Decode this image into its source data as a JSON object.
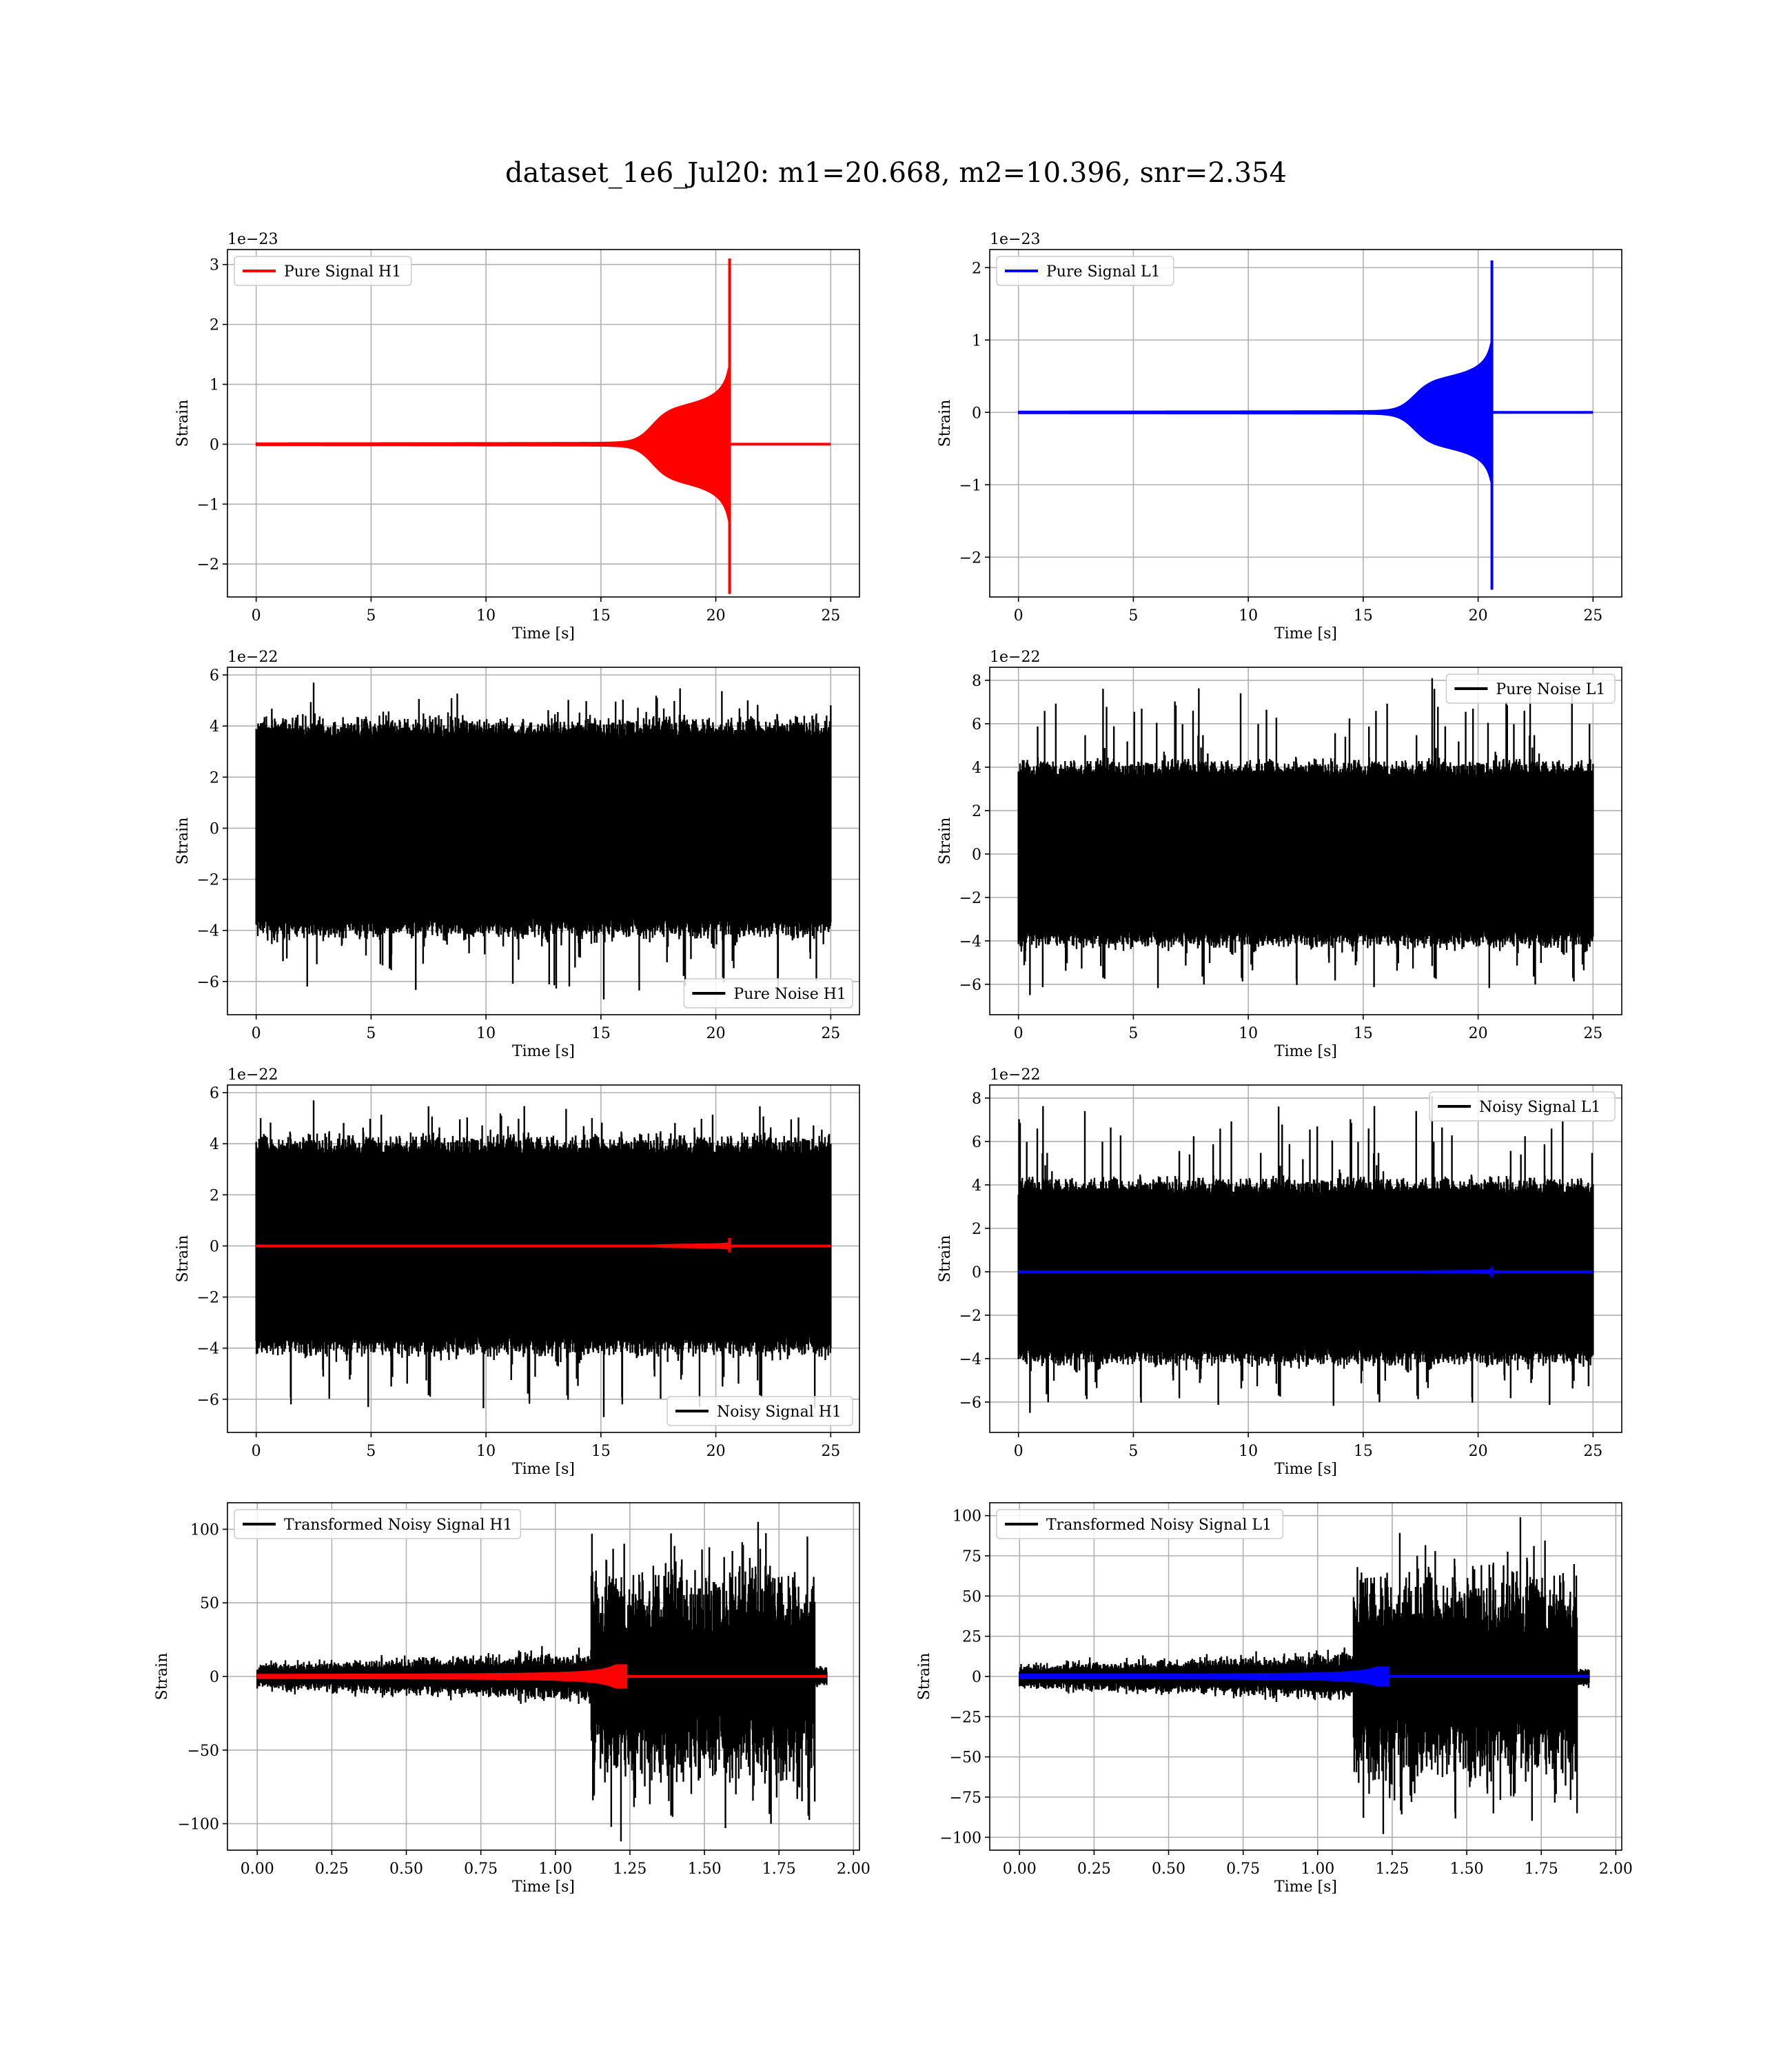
{
  "figure": {
    "title": "dataset_1e6_Jul20: m1=20.668, m2=10.396, snr=2.354"
  },
  "colors": {
    "h1_signal": "#ff0000",
    "l1_signal": "#0000ff",
    "noise": "#000000",
    "grid": "#b0b0b0"
  },
  "chart_data": [
    {
      "id": "pure-signal-h1",
      "type": "line",
      "title": "",
      "xlabel": "Time [s]",
      "ylabel": "Strain",
      "offset_label": "1e−23",
      "xlim": [
        -1.25,
        26.25
      ],
      "ylim": [
        -2.55,
        3.25
      ],
      "xticks": [
        0,
        5,
        10,
        15,
        20,
        25
      ],
      "xtick_labels": [
        "0",
        "5",
        "10",
        "15",
        "20",
        "25"
      ],
      "yticks": [
        -2,
        -1,
        0,
        1,
        2,
        3
      ],
      "ytick_labels": [
        "−2",
        "−1",
        "0",
        "1",
        "2",
        "3"
      ],
      "grid": true,
      "legend_loc": "upper left",
      "series": [
        {
          "name": "Pure Signal H1",
          "color": "#ff0000",
          "kind": "chirp",
          "t_start": 0,
          "t_merge": 20.6,
          "t_end": 25,
          "amp_plateau": 0.6,
          "amp_peak_pos": 3.1,
          "amp_peak_neg": 2.5
        }
      ]
    },
    {
      "id": "pure-signal-l1",
      "type": "line",
      "title": "",
      "xlabel": "Time [s]",
      "ylabel": "Strain",
      "offset_label": "1e−23",
      "xlim": [
        -1.25,
        26.25
      ],
      "ylim": [
        -2.55,
        2.25
      ],
      "xticks": [
        0,
        5,
        10,
        15,
        20,
        25
      ],
      "xtick_labels": [
        "0",
        "5",
        "10",
        "15",
        "20",
        "25"
      ],
      "yticks": [
        -2,
        -1,
        0,
        1,
        2
      ],
      "ytick_labels": [
        "−2",
        "−1",
        "0",
        "1",
        "2"
      ],
      "grid": true,
      "legend_loc": "upper left",
      "series": [
        {
          "name": "Pure Signal L1",
          "color": "#0000ff",
          "kind": "chirp",
          "t_start": 0,
          "t_merge": 20.6,
          "t_end": 25,
          "amp_plateau": 0.45,
          "amp_peak_pos": 2.1,
          "amp_peak_neg": 2.45
        }
      ]
    },
    {
      "id": "pure-noise-h1",
      "type": "line",
      "title": "",
      "xlabel": "Time [s]",
      "ylabel": "Strain",
      "offset_label": "1e−22",
      "xlim": [
        -1.25,
        26.25
      ],
      "ylim": [
        -7.3,
        6.3
      ],
      "xticks": [
        0,
        5,
        10,
        15,
        20,
        25
      ],
      "xtick_labels": [
        "0",
        "5",
        "10",
        "15",
        "20",
        "25"
      ],
      "yticks": [
        -6,
        -4,
        -2,
        0,
        2,
        4,
        6
      ],
      "ytick_labels": [
        "−6",
        "−4",
        "−2",
        "0",
        "2",
        "4",
        "6"
      ],
      "grid": true,
      "legend_loc": "lower right",
      "series": [
        {
          "name": "Pure Noise H1",
          "color": "#000000",
          "kind": "noise",
          "t_start": 0,
          "t_end": 25,
          "core": 3.5,
          "max": 5.7,
          "min": -6.7
        }
      ]
    },
    {
      "id": "pure-noise-l1",
      "type": "line",
      "title": "",
      "xlabel": "Time [s]",
      "ylabel": "Strain",
      "offset_label": "1e−22",
      "xlim": [
        -1.25,
        26.25
      ],
      "ylim": [
        -7.4,
        8.6
      ],
      "xticks": [
        0,
        5,
        10,
        15,
        20,
        25
      ],
      "xtick_labels": [
        "0",
        "5",
        "10",
        "15",
        "20",
        "25"
      ],
      "yticks": [
        -6,
        -4,
        -2,
        0,
        2,
        4,
        6,
        8
      ],
      "ytick_labels": [
        "−6",
        "−4",
        "−2",
        "0",
        "2",
        "4",
        "6",
        "8"
      ],
      "grid": true,
      "legend_loc": "upper right",
      "series": [
        {
          "name": "Pure Noise L1",
          "color": "#000000",
          "kind": "noise",
          "t_start": 0,
          "t_end": 25,
          "core": 3.5,
          "max": 8.1,
          "min": -6.5
        }
      ]
    },
    {
      "id": "noisy-signal-h1",
      "type": "line",
      "title": "",
      "xlabel": "Time [s]",
      "ylabel": "Strain",
      "offset_label": "1e−22",
      "xlim": [
        -1.25,
        26.25
      ],
      "ylim": [
        -7.3,
        6.3
      ],
      "xticks": [
        0,
        5,
        10,
        15,
        20,
        25
      ],
      "xtick_labels": [
        "0",
        "5",
        "10",
        "15",
        "20",
        "25"
      ],
      "yticks": [
        -6,
        -4,
        -2,
        0,
        2,
        4,
        6
      ],
      "ytick_labels": [
        "−6",
        "−4",
        "−2",
        "0",
        "2",
        "4",
        "6"
      ],
      "grid": true,
      "legend_loc": "lower right",
      "series": [
        {
          "name": "Noisy Signal H1",
          "color": "#000000",
          "kind": "noise",
          "t_start": 0,
          "t_end": 25,
          "core": 3.5,
          "max": 5.7,
          "min": -6.7
        },
        {
          "color": "#ff0000",
          "kind": "chirp",
          "t_start": 0,
          "t_merge": 20.6,
          "t_end": 25,
          "amp_plateau": 0.06,
          "amp_peak_pos": 0.31,
          "amp_peak_neg": 0.25
        }
      ]
    },
    {
      "id": "noisy-signal-l1",
      "type": "line",
      "title": "",
      "xlabel": "Time [s]",
      "ylabel": "Strain",
      "offset_label": "1e−22",
      "xlim": [
        -1.25,
        26.25
      ],
      "ylim": [
        -7.4,
        8.6
      ],
      "xticks": [
        0,
        5,
        10,
        15,
        20,
        25
      ],
      "xtick_labels": [
        "0",
        "5",
        "10",
        "15",
        "20",
        "25"
      ],
      "yticks": [
        -6,
        -4,
        -2,
        0,
        2,
        4,
        6,
        8
      ],
      "ytick_labels": [
        "−6",
        "−4",
        "−2",
        "0",
        "2",
        "4",
        "6",
        "8"
      ],
      "grid": true,
      "legend_loc": "upper right",
      "series": [
        {
          "name": "Noisy Signal L1",
          "color": "#000000",
          "kind": "noise",
          "t_start": 0,
          "t_end": 25,
          "core": 3.5,
          "max": 8.1,
          "min": -6.5
        },
        {
          "color": "#0000ff",
          "kind": "chirp",
          "t_start": 0,
          "t_merge": 20.6,
          "t_end": 25,
          "amp_plateau": 0.045,
          "amp_peak_pos": 0.21,
          "amp_peak_neg": 0.245
        }
      ]
    },
    {
      "id": "transformed-noisy-signal-h1",
      "type": "line",
      "title": "",
      "xlabel": "Time [s]",
      "ylabel": "Strain",
      "offset_label": "",
      "xlim": [
        -0.1,
        2.02
      ],
      "ylim": [
        -118,
        118
      ],
      "xticks": [
        0.0,
        0.25,
        0.5,
        0.75,
        1.0,
        1.25,
        1.5,
        1.75,
        2.0
      ],
      "xtick_labels": [
        "0.00",
        "0.25",
        "0.50",
        "0.75",
        "1.00",
        "1.25",
        "1.50",
        "1.75",
        "2.00"
      ],
      "yticks": [
        -100,
        -50,
        0,
        50,
        100
      ],
      "ytick_labels": [
        "−100",
        "−50",
        "0",
        "50",
        "100"
      ],
      "grid": true,
      "legend_loc": "upper left",
      "series": [
        {
          "name": "Transformed Noisy Signal H1",
          "color": "#000000",
          "kind": "tnoise",
          "t_start": 0,
          "t_end": 1.91,
          "t_jump": 1.12,
          "t_drop": 1.87,
          "low_amp": 7,
          "high_amp": 55,
          "max": 105,
          "min": -112
        },
        {
          "color": "#ff0000",
          "kind": "tchirp",
          "t_start": 0,
          "t_merge": 1.24,
          "t_end": 1.91,
          "amp_peak": 8
        }
      ]
    },
    {
      "id": "transformed-noisy-signal-l1",
      "type": "line",
      "title": "",
      "xlabel": "Time [s]",
      "ylabel": "Strain",
      "offset_label": "",
      "xlim": [
        -0.1,
        2.02
      ],
      "ylim": [
        -108,
        108
      ],
      "xticks": [
        0.0,
        0.25,
        0.5,
        0.75,
        1.0,
        1.25,
        1.5,
        1.75,
        2.0
      ],
      "xtick_labels": [
        "0.00",
        "0.25",
        "0.50",
        "0.75",
        "1.00",
        "1.25",
        "1.50",
        "1.75",
        "2.00"
      ],
      "yticks": [
        -100,
        -75,
        -50,
        -25,
        0,
        25,
        50,
        75,
        100
      ],
      "ytick_labels": [
        "−100",
        "−75",
        "−50",
        "−25",
        "0",
        "25",
        "50",
        "75",
        "100"
      ],
      "grid": true,
      "legend_loc": "upper left",
      "series": [
        {
          "name": "Transformed Noisy Signal L1",
          "color": "#000000",
          "kind": "tnoise",
          "t_start": 0,
          "t_end": 1.91,
          "t_jump": 1.12,
          "t_drop": 1.87,
          "low_amp": 6,
          "high_amp": 50,
          "max": 99,
          "min": -98
        },
        {
          "color": "#0000ff",
          "kind": "tchirp",
          "t_start": 0,
          "t_merge": 1.24,
          "t_end": 1.91,
          "amp_peak": 6
        }
      ]
    }
  ]
}
